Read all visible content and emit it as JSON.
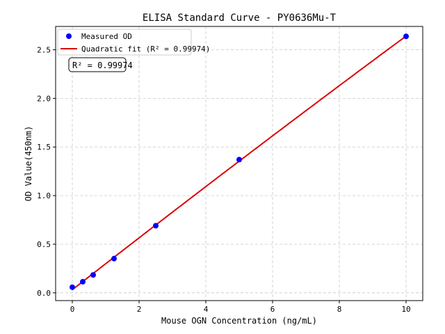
{
  "chart_data": {
    "type": "scatter",
    "title": "ELISA Standard Curve - PY0636Mu-T",
    "xlabel": "Mouse OGN Concentration (ng/mL)",
    "ylabel": "OD Value(450nm)",
    "xlim": [
      -0.5,
      10.5
    ],
    "ylim": [
      -0.08,
      2.74
    ],
    "xticks": [
      0,
      2,
      4,
      6,
      8,
      10
    ],
    "xtick_labels": [
      "0",
      "2",
      "4",
      "6",
      "8",
      "10"
    ],
    "yticks": [
      0.0,
      0.5,
      1.0,
      1.5,
      2.0,
      2.5
    ],
    "ytick_labels": [
      "0.0",
      "0.5",
      "1.0",
      "1.5",
      "2.0",
      "2.5"
    ],
    "grid": true,
    "legend_position": "top-left",
    "series": [
      {
        "name": "Measured OD",
        "kind": "scatter",
        "color": "#0000ff",
        "x": [
          0,
          0.3125,
          0.625,
          1.25,
          2.5,
          5,
          10
        ],
        "y": [
          0.058,
          0.114,
          0.184,
          0.352,
          0.69,
          1.37,
          2.638
        ]
      },
      {
        "name": "Quadratic fit (R² = 0.99974)",
        "kind": "line",
        "color": "#dd0000",
        "fit": "quadratic"
      }
    ],
    "annotation": "R² = 0.99974"
  }
}
